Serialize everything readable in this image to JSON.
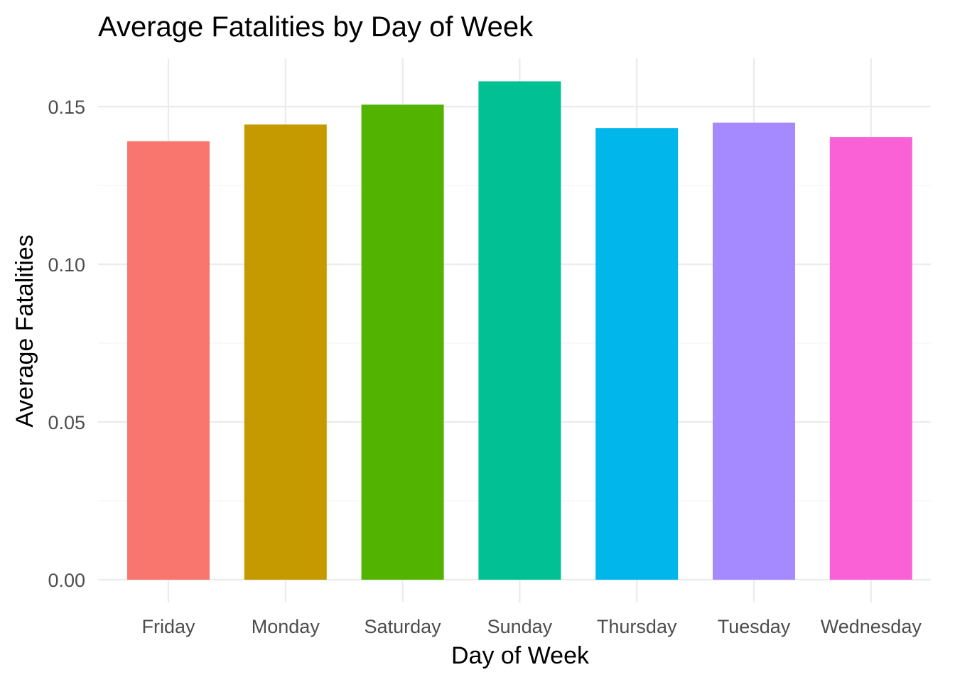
{
  "chart_data": {
    "type": "bar",
    "title": "Average Fatalities by Day of Week",
    "xlabel": "Day of Week",
    "ylabel": "Average Fatalities",
    "categories": [
      "Friday",
      "Monday",
      "Saturday",
      "Sunday",
      "Thursday",
      "Tuesday",
      "Wednesday"
    ],
    "values": [
      0.139,
      0.1443,
      0.1506,
      0.158,
      0.1432,
      0.1449,
      0.1403
    ],
    "colors": [
      "#F8766D",
      "#C49A00",
      "#53B400",
      "#00C094",
      "#00B6EB",
      "#A58AFF",
      "#FB61D7"
    ],
    "ylim": [
      0,
      0.165
    ],
    "yticks": [
      0,
      0.05,
      0.1,
      0.15
    ],
    "ytick_labels": [
      "0.00",
      "0.05",
      "0.10",
      "0.15"
    ],
    "grid": true,
    "legend": "none"
  }
}
